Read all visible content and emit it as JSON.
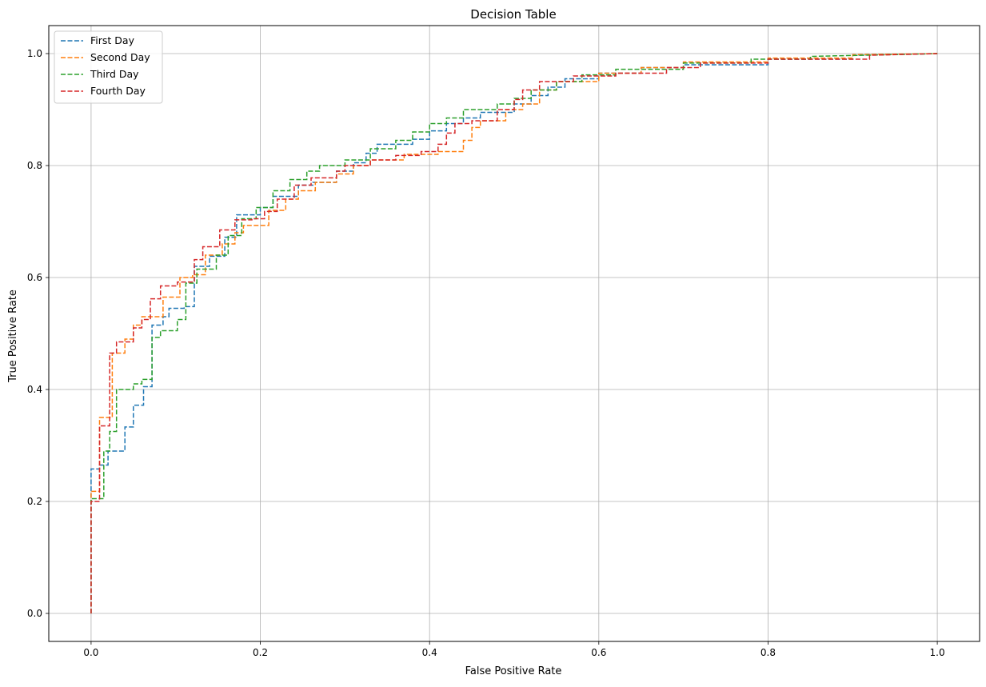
{
  "chart_data": {
    "type": "line",
    "title": "Decision Table",
    "xlabel": "False Positive Rate",
    "ylabel": "True Positive Rate",
    "xlim": [
      -0.05,
      1.05
    ],
    "ylim": [
      -0.05,
      1.05
    ],
    "xticks": [
      0.0,
      0.2,
      0.4,
      0.6,
      0.8,
      1.0
    ],
    "yticks": [
      0.0,
      0.2,
      0.4,
      0.6,
      0.8,
      1.0
    ],
    "grid": true,
    "legend_position": "top-left",
    "line_style": "dashed",
    "step": true,
    "series": [
      {
        "name": "First Day",
        "color": "#1f77b4",
        "points": [
          [
            0,
            0
          ],
          [
            0,
            0.258
          ],
          [
            0.01,
            0.258
          ],
          [
            0.01,
            0.265
          ],
          [
            0.02,
            0.265
          ],
          [
            0.02,
            0.29
          ],
          [
            0.04,
            0.29
          ],
          [
            0.04,
            0.333
          ],
          [
            0.05,
            0.333
          ],
          [
            0.05,
            0.372
          ],
          [
            0.062,
            0.372
          ],
          [
            0.062,
            0.405
          ],
          [
            0.072,
            0.405
          ],
          [
            0.072,
            0.515
          ],
          [
            0.085,
            0.515
          ],
          [
            0.085,
            0.53
          ],
          [
            0.092,
            0.53
          ],
          [
            0.092,
            0.545
          ],
          [
            0.11,
            0.545
          ],
          [
            0.11,
            0.548
          ],
          [
            0.122,
            0.548
          ],
          [
            0.122,
            0.62
          ],
          [
            0.14,
            0.62
          ],
          [
            0.14,
            0.638
          ],
          [
            0.158,
            0.638
          ],
          [
            0.158,
            0.672
          ],
          [
            0.172,
            0.672
          ],
          [
            0.172,
            0.712
          ],
          [
            0.2,
            0.712
          ],
          [
            0.2,
            0.725
          ],
          [
            0.215,
            0.725
          ],
          [
            0.215,
            0.745
          ],
          [
            0.245,
            0.745
          ],
          [
            0.245,
            0.765
          ],
          [
            0.262,
            0.765
          ],
          [
            0.262,
            0.77
          ],
          [
            0.29,
            0.77
          ],
          [
            0.29,
            0.79
          ],
          [
            0.31,
            0.79
          ],
          [
            0.31,
            0.805
          ],
          [
            0.325,
            0.805
          ],
          [
            0.325,
            0.822
          ],
          [
            0.338,
            0.822
          ],
          [
            0.338,
            0.838
          ],
          [
            0.38,
            0.838
          ],
          [
            0.38,
            0.847
          ],
          [
            0.4,
            0.847
          ],
          [
            0.4,
            0.862
          ],
          [
            0.42,
            0.862
          ],
          [
            0.42,
            0.875
          ],
          [
            0.44,
            0.875
          ],
          [
            0.44,
            0.885
          ],
          [
            0.46,
            0.885
          ],
          [
            0.46,
            0.895
          ],
          [
            0.5,
            0.895
          ],
          [
            0.5,
            0.91
          ],
          [
            0.52,
            0.91
          ],
          [
            0.52,
            0.925
          ],
          [
            0.54,
            0.925
          ],
          [
            0.54,
            0.94
          ],
          [
            0.56,
            0.94
          ],
          [
            0.56,
            0.955
          ],
          [
            0.6,
            0.955
          ],
          [
            0.6,
            0.965
          ],
          [
            0.65,
            0.965
          ],
          [
            0.65,
            0.975
          ],
          [
            0.7,
            0.975
          ],
          [
            0.7,
            0.98
          ],
          [
            0.8,
            0.98
          ],
          [
            0.8,
            0.99
          ],
          [
            0.9,
            0.99
          ],
          [
            0.9,
            0.997
          ],
          [
            1.0,
            1.0
          ]
        ]
      },
      {
        "name": "Second Day",
        "color": "#ff7f0e",
        "points": [
          [
            0,
            0
          ],
          [
            0,
            0.218
          ],
          [
            0.01,
            0.218
          ],
          [
            0.01,
            0.35
          ],
          [
            0.025,
            0.35
          ],
          [
            0.025,
            0.465
          ],
          [
            0.04,
            0.465
          ],
          [
            0.04,
            0.49
          ],
          [
            0.05,
            0.49
          ],
          [
            0.05,
            0.515
          ],
          [
            0.06,
            0.515
          ],
          [
            0.06,
            0.53
          ],
          [
            0.085,
            0.53
          ],
          [
            0.085,
            0.565
          ],
          [
            0.105,
            0.565
          ],
          [
            0.105,
            0.6
          ],
          [
            0.12,
            0.6
          ],
          [
            0.12,
            0.605
          ],
          [
            0.135,
            0.605
          ],
          [
            0.135,
            0.64
          ],
          [
            0.155,
            0.64
          ],
          [
            0.155,
            0.66
          ],
          [
            0.17,
            0.66
          ],
          [
            0.17,
            0.68
          ],
          [
            0.18,
            0.68
          ],
          [
            0.18,
            0.693
          ],
          [
            0.21,
            0.693
          ],
          [
            0.21,
            0.72
          ],
          [
            0.23,
            0.72
          ],
          [
            0.23,
            0.74
          ],
          [
            0.245,
            0.74
          ],
          [
            0.245,
            0.755
          ],
          [
            0.265,
            0.755
          ],
          [
            0.265,
            0.77
          ],
          [
            0.29,
            0.77
          ],
          [
            0.29,
            0.785
          ],
          [
            0.31,
            0.785
          ],
          [
            0.31,
            0.8
          ],
          [
            0.33,
            0.8
          ],
          [
            0.33,
            0.81
          ],
          [
            0.37,
            0.81
          ],
          [
            0.37,
            0.82
          ],
          [
            0.41,
            0.82
          ],
          [
            0.41,
            0.825
          ],
          [
            0.44,
            0.825
          ],
          [
            0.44,
            0.845
          ],
          [
            0.45,
            0.845
          ],
          [
            0.45,
            0.868
          ],
          [
            0.46,
            0.868
          ],
          [
            0.46,
            0.88
          ],
          [
            0.49,
            0.88
          ],
          [
            0.49,
            0.9
          ],
          [
            0.51,
            0.9
          ],
          [
            0.51,
            0.91
          ],
          [
            0.53,
            0.91
          ],
          [
            0.53,
            0.935
          ],
          [
            0.55,
            0.935
          ],
          [
            0.55,
            0.95
          ],
          [
            0.6,
            0.95
          ],
          [
            0.6,
            0.965
          ],
          [
            0.65,
            0.965
          ],
          [
            0.65,
            0.975
          ],
          [
            0.7,
            0.975
          ],
          [
            0.7,
            0.985
          ],
          [
            0.8,
            0.985
          ],
          [
            0.8,
            0.992
          ],
          [
            0.9,
            0.992
          ],
          [
            0.9,
            0.998
          ],
          [
            1.0,
            1.0
          ]
        ]
      },
      {
        "name": "Third Day",
        "color": "#2ca02c",
        "points": [
          [
            0,
            0
          ],
          [
            0,
            0.205
          ],
          [
            0.015,
            0.205
          ],
          [
            0.015,
            0.29
          ],
          [
            0.022,
            0.29
          ],
          [
            0.022,
            0.325
          ],
          [
            0.03,
            0.325
          ],
          [
            0.03,
            0.4
          ],
          [
            0.05,
            0.4
          ],
          [
            0.05,
            0.41
          ],
          [
            0.06,
            0.41
          ],
          [
            0.06,
            0.418
          ],
          [
            0.072,
            0.418
          ],
          [
            0.072,
            0.493
          ],
          [
            0.082,
            0.493
          ],
          [
            0.082,
            0.505
          ],
          [
            0.102,
            0.505
          ],
          [
            0.102,
            0.525
          ],
          [
            0.112,
            0.525
          ],
          [
            0.112,
            0.59
          ],
          [
            0.125,
            0.59
          ],
          [
            0.125,
            0.615
          ],
          [
            0.148,
            0.615
          ],
          [
            0.148,
            0.64
          ],
          [
            0.162,
            0.64
          ],
          [
            0.162,
            0.675
          ],
          [
            0.178,
            0.675
          ],
          [
            0.178,
            0.705
          ],
          [
            0.195,
            0.705
          ],
          [
            0.195,
            0.725
          ],
          [
            0.215,
            0.725
          ],
          [
            0.215,
            0.755
          ],
          [
            0.235,
            0.755
          ],
          [
            0.235,
            0.775
          ],
          [
            0.255,
            0.775
          ],
          [
            0.255,
            0.79
          ],
          [
            0.27,
            0.79
          ],
          [
            0.27,
            0.8
          ],
          [
            0.3,
            0.8
          ],
          [
            0.3,
            0.81
          ],
          [
            0.33,
            0.81
          ],
          [
            0.33,
            0.83
          ],
          [
            0.36,
            0.83
          ],
          [
            0.36,
            0.845
          ],
          [
            0.38,
            0.845
          ],
          [
            0.38,
            0.86
          ],
          [
            0.4,
            0.86
          ],
          [
            0.4,
            0.875
          ],
          [
            0.42,
            0.875
          ],
          [
            0.42,
            0.885
          ],
          [
            0.44,
            0.885
          ],
          [
            0.44,
            0.9
          ],
          [
            0.48,
            0.9
          ],
          [
            0.48,
            0.91
          ],
          [
            0.5,
            0.91
          ],
          [
            0.5,
            0.92
          ],
          [
            0.52,
            0.92
          ],
          [
            0.52,
            0.935
          ],
          [
            0.55,
            0.935
          ],
          [
            0.55,
            0.95
          ],
          [
            0.58,
            0.95
          ],
          [
            0.58,
            0.962
          ],
          [
            0.62,
            0.962
          ],
          [
            0.62,
            0.972
          ],
          [
            0.7,
            0.972
          ],
          [
            0.7,
            0.983
          ],
          [
            0.78,
            0.983
          ],
          [
            0.78,
            0.99
          ],
          [
            0.85,
            0.99
          ],
          [
            0.85,
            0.995
          ],
          [
            1.0,
            1.0
          ]
        ]
      },
      {
        "name": "Fourth Day",
        "color": "#d62728",
        "points": [
          [
            0,
            0
          ],
          [
            0,
            0.2
          ],
          [
            0.01,
            0.2
          ],
          [
            0.01,
            0.335
          ],
          [
            0.022,
            0.335
          ],
          [
            0.022,
            0.465
          ],
          [
            0.03,
            0.465
          ],
          [
            0.03,
            0.485
          ],
          [
            0.05,
            0.485
          ],
          [
            0.05,
            0.51
          ],
          [
            0.06,
            0.51
          ],
          [
            0.06,
            0.525
          ],
          [
            0.07,
            0.525
          ],
          [
            0.07,
            0.562
          ],
          [
            0.082,
            0.562
          ],
          [
            0.082,
            0.585
          ],
          [
            0.102,
            0.585
          ],
          [
            0.102,
            0.592
          ],
          [
            0.122,
            0.592
          ],
          [
            0.122,
            0.632
          ],
          [
            0.132,
            0.632
          ],
          [
            0.132,
            0.655
          ],
          [
            0.152,
            0.655
          ],
          [
            0.152,
            0.685
          ],
          [
            0.17,
            0.685
          ],
          [
            0.17,
            0.703
          ],
          [
            0.19,
            0.703
          ],
          [
            0.19,
            0.705
          ],
          [
            0.205,
            0.705
          ],
          [
            0.205,
            0.718
          ],
          [
            0.22,
            0.718
          ],
          [
            0.22,
            0.74
          ],
          [
            0.24,
            0.74
          ],
          [
            0.24,
            0.765
          ],
          [
            0.26,
            0.765
          ],
          [
            0.26,
            0.778
          ],
          [
            0.29,
            0.778
          ],
          [
            0.29,
            0.79
          ],
          [
            0.3,
            0.79
          ],
          [
            0.3,
            0.8
          ],
          [
            0.33,
            0.8
          ],
          [
            0.33,
            0.81
          ],
          [
            0.36,
            0.81
          ],
          [
            0.36,
            0.818
          ],
          [
            0.39,
            0.818
          ],
          [
            0.39,
            0.825
          ],
          [
            0.41,
            0.825
          ],
          [
            0.41,
            0.838
          ],
          [
            0.42,
            0.838
          ],
          [
            0.42,
            0.858
          ],
          [
            0.43,
            0.858
          ],
          [
            0.43,
            0.875
          ],
          [
            0.45,
            0.875
          ],
          [
            0.45,
            0.88
          ],
          [
            0.48,
            0.88
          ],
          [
            0.48,
            0.9
          ],
          [
            0.5,
            0.9
          ],
          [
            0.5,
            0.918
          ],
          [
            0.51,
            0.918
          ],
          [
            0.51,
            0.935
          ],
          [
            0.53,
            0.935
          ],
          [
            0.53,
            0.95
          ],
          [
            0.57,
            0.95
          ],
          [
            0.57,
            0.96
          ],
          [
            0.62,
            0.96
          ],
          [
            0.62,
            0.965
          ],
          [
            0.68,
            0.965
          ],
          [
            0.68,
            0.975
          ],
          [
            0.72,
            0.975
          ],
          [
            0.72,
            0.983
          ],
          [
            0.8,
            0.983
          ],
          [
            0.8,
            0.99
          ],
          [
            0.92,
            0.99
          ],
          [
            0.92,
            0.997
          ],
          [
            1.0,
            1.0
          ]
        ]
      }
    ]
  }
}
